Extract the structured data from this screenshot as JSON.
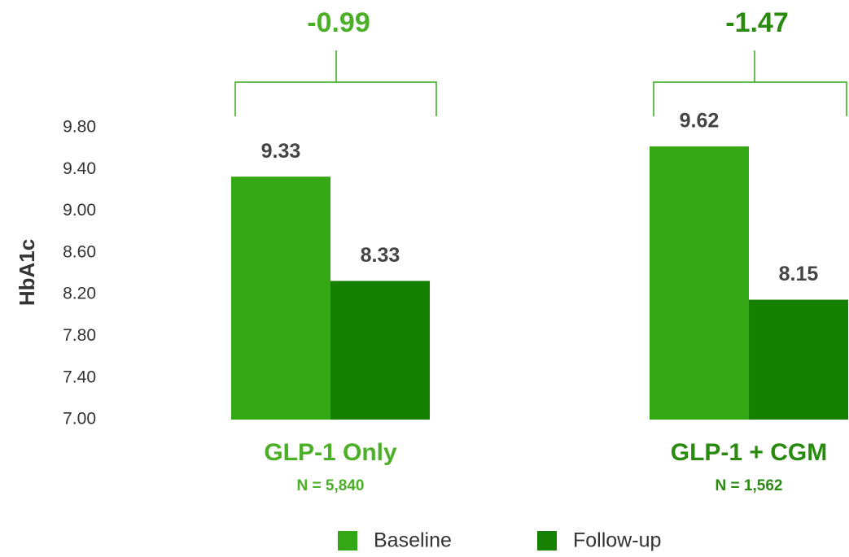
{
  "chart_data": {
    "type": "bar",
    "y_label": "HbA1c",
    "categories": [
      "GLP-1 Only",
      "GLP-1 + CGM"
    ],
    "category_notes": [
      "N = 5,840",
      "N = 1,562"
    ],
    "differences": [
      -0.99,
      -1.47
    ],
    "series": [
      {
        "name": "Baseline",
        "color": "#33a814",
        "values": [
          9.33,
          9.62
        ]
      },
      {
        "name": "Follow-up",
        "color": "#168000",
        "values": [
          8.33,
          8.15
        ]
      }
    ],
    "ylim": [
      7,
      9.8
    ],
    "yticks": [
      {
        "value": 7,
        "label": "7.00"
      },
      {
        "value": 7.4,
        "label": "7.40"
      },
      {
        "value": 7.8,
        "label": "7.80"
      },
      {
        "value": 8.2,
        "label": "8.20"
      },
      {
        "value": 8.6,
        "label": "8.60"
      },
      {
        "value": 9,
        "label": "9.00"
      },
      {
        "value": 9.4,
        "label": "9.40"
      },
      {
        "value": 9.8,
        "label": "9.80"
      }
    ],
    "grid": false,
    "legend": "bottom"
  }
}
